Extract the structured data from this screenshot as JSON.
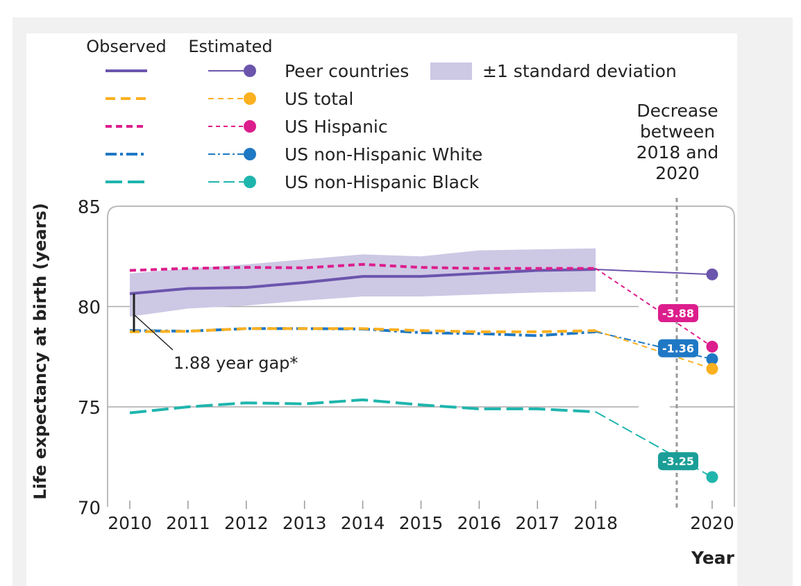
{
  "chart_data": {
    "type": "line",
    "title": "",
    "xlabel": "Year",
    "ylabel": "Life expectancy at birth (years)",
    "ylim": [
      70,
      85
    ],
    "yticks": [
      "70",
      "75",
      "80",
      "85"
    ],
    "x": [
      2010,
      2011,
      2012,
      2013,
      2014,
      2015,
      2016,
      2017,
      2018
    ],
    "xticks": [
      "2010",
      "2011",
      "2012",
      "2013",
      "2014",
      "2015",
      "2016",
      "2017",
      "2018",
      "2020"
    ],
    "estimated_x": 2020,
    "legend_headers": {
      "observed": "Observed",
      "estimated": "Estimated"
    },
    "band": {
      "name": "±1 standard deviation",
      "color": "#cdc8e4",
      "upper": [
        81.65,
        81.9,
        82.1,
        82.35,
        82.6,
        82.5,
        82.8,
        82.85,
        82.9
      ],
      "lower": [
        79.5,
        79.9,
        80.05,
        80.3,
        80.5,
        80.5,
        80.6,
        80.7,
        80.75
      ]
    },
    "series": [
      {
        "name": "Peer countries",
        "color": "#6b55ad",
        "values": [
          80.64,
          80.9,
          80.95,
          81.2,
          81.5,
          81.5,
          81.65,
          81.8,
          81.85
        ],
        "estimate_2020": 81.6,
        "dash": "",
        "est_dash": ""
      },
      {
        "name": "US total",
        "color": "#fbb020",
        "values": [
          78.74,
          78.77,
          78.9,
          78.9,
          78.9,
          78.8,
          78.74,
          78.74,
          78.8
        ],
        "estimate_2020": 76.9,
        "dash": "14 8",
        "est_dash": "8 6"
      },
      {
        "name": "US Hispanic",
        "color": "#dc1e8c",
        "values": [
          81.8,
          81.9,
          81.95,
          81.93,
          82.1,
          81.95,
          81.9,
          81.9,
          81.9
        ],
        "estimate_2020": 78.0,
        "dash": "9 6",
        "est_dash": "6 5",
        "decrease": "-3.88"
      },
      {
        "name": "US non-Hispanic White",
        "color": "#1f78c4",
        "values": [
          78.8,
          78.77,
          78.9,
          78.9,
          78.88,
          78.7,
          78.65,
          78.55,
          78.74
        ],
        "estimate_2020": 77.38,
        "dash": "16 5 4 5",
        "est_dash": "10 4 3 4",
        "decrease": "-1.36"
      },
      {
        "name": "US non-Hispanic Black",
        "color": "#1fb5ad",
        "values": [
          74.7,
          75.0,
          75.2,
          75.15,
          75.35,
          75.1,
          74.9,
          74.9,
          74.75
        ],
        "estimate_2020": 71.5,
        "dash": "24 8",
        "est_dash": "16 6",
        "decrease": "-3.25",
        "label_color": "#1a9e97"
      }
    ],
    "annotations": {
      "gap": "1.88 year gap*",
      "decrease_title": [
        "Decrease",
        "between",
        "2018 and",
        "2020"
      ]
    },
    "legend_placement": "top"
  }
}
